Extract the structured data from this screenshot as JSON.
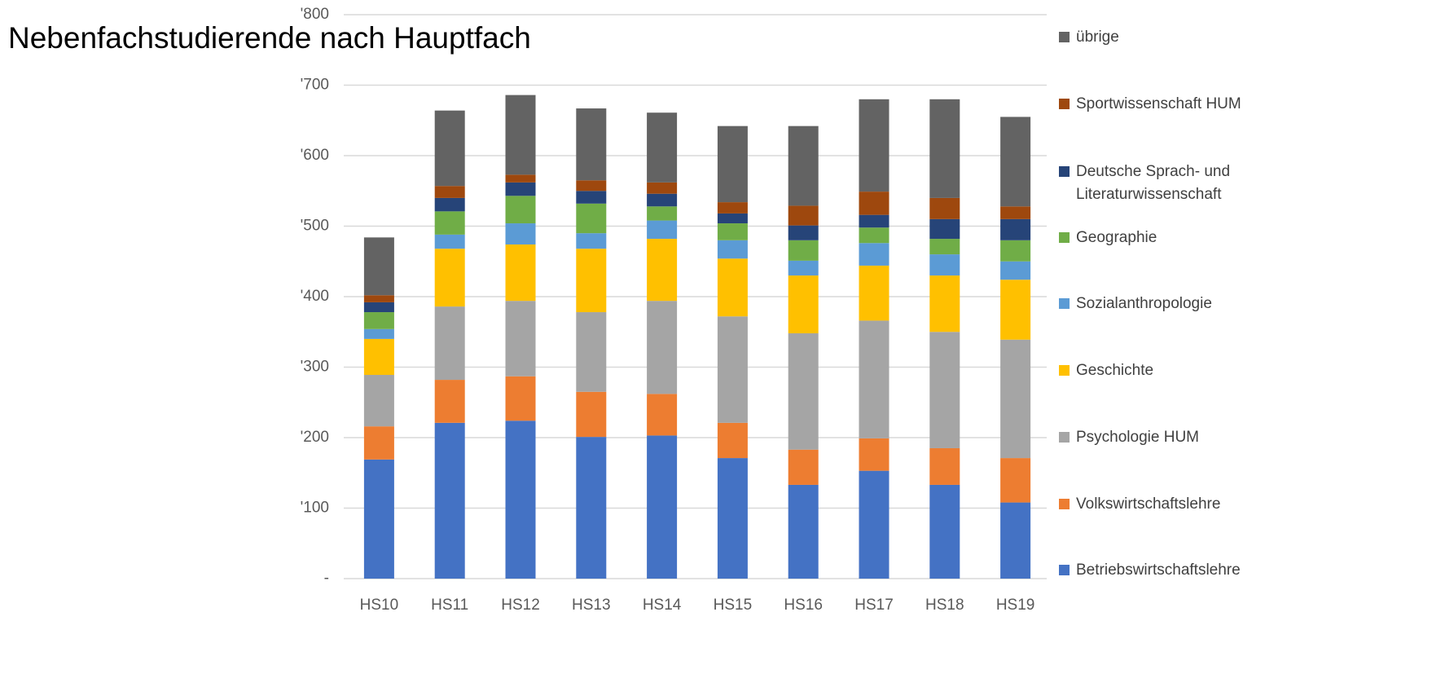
{
  "chart_data": {
    "type": "stacked_bar",
    "title": "Nebenfachstudierende nach Hauptfach",
    "categories": [
      "HS10",
      "HS11",
      "HS12",
      "HS13",
      "HS14",
      "HS15",
      "HS16",
      "HS17",
      "HS18",
      "HS19"
    ],
    "series": [
      {
        "name": "Betriebswirtschaftslehre",
        "color": "#4472c4",
        "values": [
          169,
          221,
          224,
          201,
          203,
          171,
          133,
          153,
          133,
          108
        ]
      },
      {
        "name": "Volkswirtschaftslehre",
        "color": "#ed7d31",
        "values": [
          47,
          61,
          63,
          64,
          59,
          50,
          50,
          46,
          52,
          63
        ]
      },
      {
        "name": "Psychologie HUM",
        "color": "#a5a5a5",
        "values": [
          73,
          104,
          107,
          113,
          132,
          151,
          165,
          167,
          165,
          168
        ]
      },
      {
        "name": "Geschichte",
        "color": "#ffc000",
        "values": [
          51,
          82,
          80,
          90,
          88,
          82,
          82,
          78,
          80,
          85
        ]
      },
      {
        "name": "Sozialanthropologie",
        "color": "#5b9bd5",
        "values": [
          14,
          20,
          30,
          22,
          26,
          26,
          21,
          32,
          30,
          26
        ]
      },
      {
        "name": "Geographie",
        "color": "#70ad47",
        "values": [
          24,
          33,
          39,
          42,
          20,
          24,
          29,
          22,
          22,
          30
        ]
      },
      {
        "name": "Deutsche Sprach- und Literaturwissenschaft",
        "color": "#264478",
        "values": [
          14,
          19,
          19,
          18,
          18,
          14,
          21,
          18,
          28,
          30
        ]
      },
      {
        "name": "Sportwissenschaft HUM",
        "color": "#9e480e",
        "values": [
          10,
          17,
          11,
          15,
          16,
          16,
          28,
          33,
          30,
          18
        ]
      },
      {
        "name": "übrige",
        "color": "#636363",
        "values": [
          82,
          107,
          113,
          102,
          99,
          108,
          113,
          131,
          140,
          127
        ]
      }
    ],
    "ylim": [
      0,
      800
    ],
    "yticks": [
      {
        "value": 0,
        "label": "-"
      },
      {
        "value": 100,
        "label": "'100"
      },
      {
        "value": 200,
        "label": "'200"
      },
      {
        "value": 300,
        "label": "'300"
      },
      {
        "value": 400,
        "label": "'400"
      },
      {
        "value": 500,
        "label": "'500"
      },
      {
        "value": 600,
        "label": "'600"
      },
      {
        "value": 700,
        "label": "'700"
      },
      {
        "value": 800,
        "label": "'800"
      }
    ],
    "grid": true
  }
}
